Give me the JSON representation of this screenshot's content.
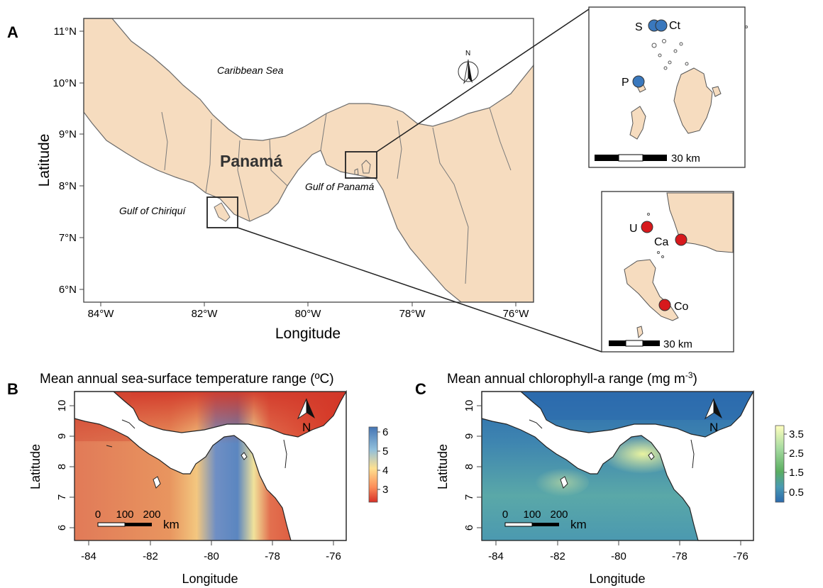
{
  "panel_a": {
    "letter": "A",
    "x_axis_title": "Longitude",
    "y_axis_title": "Latitude",
    "x_ticks": [
      "84°W",
      "82°W",
      "80°W",
      "78°W",
      "76°W"
    ],
    "y_ticks": [
      "11°N",
      "10°N",
      "9°N",
      "8°N",
      "7°N",
      "6°N"
    ],
    "labels": {
      "caribbean": "Caribbean Sea",
      "country": "Panamá",
      "gulf_panama": "Gulf of Panamá",
      "gulf_chiriqui": "Gulf of Chiriquí"
    },
    "north_label": "N"
  },
  "inset_top": {
    "sites": [
      {
        "label": "S",
        "group": "Gulf of Panamá",
        "color": "#3a78bd"
      },
      {
        "label": "Ct",
        "group": "Gulf of Panamá",
        "color": "#3a78bd"
      },
      {
        "label": "P",
        "group": "Gulf of Panamá",
        "color": "#3a78bd"
      }
    ],
    "scale_label": "30 km"
  },
  "inset_bottom": {
    "sites": [
      {
        "label": "U",
        "group": "Gulf of Chiriquí",
        "color": "#d7191c"
      },
      {
        "label": "Ca",
        "group": "Gulf of Chiriquí",
        "color": "#d7191c"
      },
      {
        "label": "Co",
        "group": "Gulf of Chiriquí",
        "color": "#d7191c"
      }
    ],
    "scale_label": "30 km"
  },
  "panel_b": {
    "letter": "B",
    "title": "Mean annual sea-surface temperature range (ºC)",
    "x_axis_title": "Longitude",
    "y_axis_title": "Latitude",
    "x_ticks": [
      "-84",
      "-82",
      "-80",
      "-78",
      "-76"
    ],
    "y_ticks": [
      "10",
      "9",
      "8",
      "7",
      "6"
    ],
    "legend_ticks": [
      "6",
      "5",
      "4",
      "3"
    ],
    "legend_colors": [
      "#4575b4",
      "#91bfdb",
      "#fee090",
      "#fc8d59",
      "#d73027"
    ],
    "scale_ticks": [
      "0",
      "100",
      "200"
    ],
    "scale_unit": "km",
    "north_label": "N"
  },
  "panel_c": {
    "letter": "C",
    "title_main": "Mean annual chlorophyll-a range (mg m",
    "title_sup": "-3",
    "title_end": ")",
    "x_axis_title": "Longitude",
    "y_axis_title": "Latitude",
    "x_ticks": [
      "-84",
      "-82",
      "-80",
      "-78",
      "-76"
    ],
    "y_ticks": [
      "10",
      "9",
      "8",
      "7",
      "6"
    ],
    "legend_ticks": [
      "3.5",
      "2.5",
      "1.5",
      "0.5"
    ],
    "legend_colors": [
      "#ffffbf",
      "#a6dba0",
      "#5aae61",
      "#4a9ab2",
      "#2c6aad"
    ],
    "scale_ticks": [
      "0",
      "100",
      "200"
    ],
    "scale_unit": "km",
    "north_label": "N"
  }
}
